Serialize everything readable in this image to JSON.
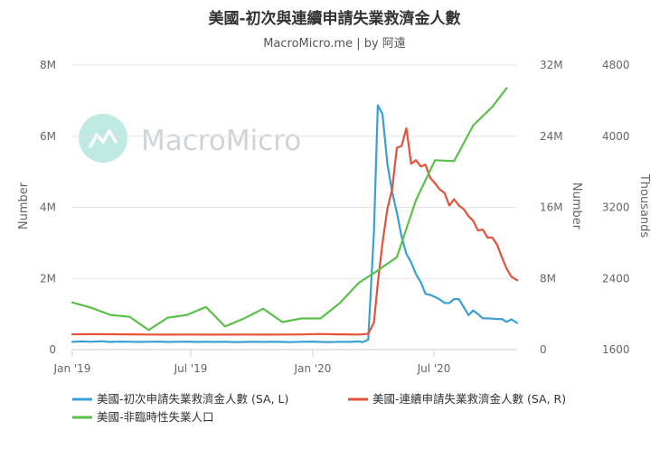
{
  "chart_data": {
    "type": "line",
    "title": "美國-初次與連續申請失業救濟金人數",
    "subtitle": "MacroMicro.me | by 阿遠",
    "watermark": "MacroMicro",
    "x_axis": {
      "ticks": [
        "Jan '19",
        "Jul '19",
        "Jan '20",
        "Jul '20"
      ],
      "min": 0,
      "max": 23.3
    },
    "y_axes": [
      {
        "id": "left",
        "label": "Number",
        "min": 0,
        "max": 8000000,
        "ticks": [
          "0",
          "2M",
          "4M",
          "6M",
          "8M"
        ]
      },
      {
        "id": "right",
        "label": "Number",
        "min": 0,
        "max": 32000000,
        "ticks": [
          "0",
          "8M",
          "16M",
          "24M",
          "32M"
        ]
      },
      {
        "id": "far-right",
        "label": "Thousands",
        "min": 1600,
        "max": 4800,
        "ticks": [
          "1600",
          "2400",
          "3200",
          "4000",
          "4800"
        ]
      }
    ],
    "grid": true,
    "legend_position": "bottom",
    "series": [
      {
        "name": "美國-初次申請失業救濟金人數 (SA, L)",
        "axis": "left",
        "color": "#3aa0d1",
        "points": [
          [
            0.0,
            220000
          ],
          [
            0.5,
            230000
          ],
          [
            1.0,
            220000
          ],
          [
            1.5,
            235000
          ],
          [
            2.0,
            215000
          ],
          [
            2.5,
            225000
          ],
          [
            3.0,
            220000
          ],
          [
            3.5,
            215000
          ],
          [
            4.0,
            220000
          ],
          [
            4.5,
            225000
          ],
          [
            5.0,
            215000
          ],
          [
            5.5,
            220000
          ],
          [
            6.0,
            225000
          ],
          [
            6.5,
            215000
          ],
          [
            7.0,
            220000
          ],
          [
            7.5,
            215000
          ],
          [
            8.0,
            220000
          ],
          [
            8.5,
            210000
          ],
          [
            9.0,
            215000
          ],
          [
            9.5,
            220000
          ],
          [
            10.0,
            215000
          ],
          [
            10.5,
            220000
          ],
          [
            11.0,
            215000
          ],
          [
            11.5,
            210000
          ],
          [
            12.0,
            220000
          ],
          [
            12.5,
            225000
          ],
          [
            13.0,
            215000
          ],
          [
            13.5,
            210000
          ],
          [
            14.0,
            220000
          ],
          [
            14.5,
            215000
          ],
          [
            15.0,
            230000
          ],
          [
            15.2,
            210000
          ],
          [
            15.5,
            280000
          ],
          [
            15.8,
            3300000
          ],
          [
            16.0,
            6870000
          ],
          [
            16.25,
            6620000
          ],
          [
            16.5,
            5240000
          ],
          [
            16.75,
            4440000
          ],
          [
            17.0,
            3850000
          ],
          [
            17.25,
            3180000
          ],
          [
            17.5,
            2690000
          ],
          [
            17.75,
            2450000
          ],
          [
            18.0,
            2120000
          ],
          [
            18.25,
            1900000
          ],
          [
            18.5,
            1570000
          ],
          [
            18.75,
            1540000
          ],
          [
            19.0,
            1480000
          ],
          [
            19.25,
            1410000
          ],
          [
            19.5,
            1310000
          ],
          [
            19.75,
            1310000
          ],
          [
            20.0,
            1420000
          ],
          [
            20.25,
            1420000
          ],
          [
            20.5,
            1200000
          ],
          [
            20.75,
            970000
          ],
          [
            21.0,
            1100000
          ],
          [
            21.25,
            1000000
          ],
          [
            21.5,
            880000
          ],
          [
            21.75,
            880000
          ],
          [
            22.0,
            870000
          ],
          [
            22.25,
            860000
          ],
          [
            22.5,
            860000
          ],
          [
            22.75,
            780000
          ],
          [
            23.0,
            850000
          ],
          [
            23.3,
            750000
          ]
        ]
      },
      {
        "name": "美國-連續申請失業救濟金人數 (SA, R)",
        "axis": "right",
        "color": "#e2533a",
        "points": [
          [
            0.0,
            1730000
          ],
          [
            1.0,
            1740000
          ],
          [
            2.0,
            1730000
          ],
          [
            3.0,
            1720000
          ],
          [
            4.0,
            1700000
          ],
          [
            5.0,
            1690000
          ],
          [
            6.0,
            1700000
          ],
          [
            7.0,
            1690000
          ],
          [
            8.0,
            1690000
          ],
          [
            9.0,
            1700000
          ],
          [
            10.0,
            1690000
          ],
          [
            11.0,
            1700000
          ],
          [
            12.0,
            1710000
          ],
          [
            13.0,
            1760000
          ],
          [
            14.0,
            1720000
          ],
          [
            15.0,
            1700000
          ],
          [
            15.5,
            1780000
          ],
          [
            15.8,
            3030000
          ],
          [
            16.0,
            7500000
          ],
          [
            16.25,
            12000000
          ],
          [
            16.5,
            15800000
          ],
          [
            16.75,
            18000000
          ],
          [
            17.0,
            22700000
          ],
          [
            17.25,
            22900000
          ],
          [
            17.5,
            24900000
          ],
          [
            17.75,
            20900000
          ],
          [
            18.0,
            21300000
          ],
          [
            18.25,
            20600000
          ],
          [
            18.5,
            20800000
          ],
          [
            18.75,
            19300000
          ],
          [
            19.0,
            18700000
          ],
          [
            19.25,
            18000000
          ],
          [
            19.5,
            17600000
          ],
          [
            19.75,
            16200000
          ],
          [
            20.0,
            16900000
          ],
          [
            20.25,
            16200000
          ],
          [
            20.5,
            15800000
          ],
          [
            20.75,
            15000000
          ],
          [
            21.0,
            14500000
          ],
          [
            21.25,
            13400000
          ],
          [
            21.5,
            13500000
          ],
          [
            21.75,
            12600000
          ],
          [
            22.0,
            12600000
          ],
          [
            22.25,
            11800000
          ],
          [
            22.5,
            10400000
          ],
          [
            22.75,
            9100000
          ],
          [
            23.0,
            8200000
          ],
          [
            23.3,
            7800000
          ]
        ]
      },
      {
        "name": "美國-非臨時性失業人口",
        "axis": "far-right",
        "color": "#5cbf4c",
        "points": [
          [
            0.0,
            2130
          ],
          [
            1.0,
            2070
          ],
          [
            2.0,
            1990
          ],
          [
            3.0,
            1970
          ],
          [
            4.0,
            1820
          ],
          [
            5.0,
            1960
          ],
          [
            6.0,
            1990
          ],
          [
            7.0,
            2080
          ],
          [
            8.0,
            1860
          ],
          [
            9.0,
            1950
          ],
          [
            10.0,
            2060
          ],
          [
            11.0,
            1910
          ],
          [
            12.0,
            1950
          ],
          [
            13.0,
            1950
          ],
          [
            14.0,
            2120
          ],
          [
            15.0,
            2350
          ],
          [
            16.0,
            2490
          ],
          [
            17.0,
            2640
          ],
          [
            18.0,
            3280
          ],
          [
            19.0,
            3730
          ],
          [
            20.0,
            3720
          ],
          [
            21.0,
            4120
          ],
          [
            22.0,
            4330
          ],
          [
            22.75,
            4540
          ]
        ]
      }
    ]
  }
}
